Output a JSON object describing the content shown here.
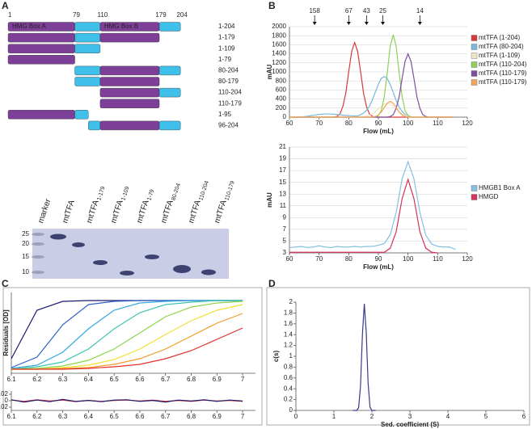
{
  "panels": [
    "A",
    "B",
    "C",
    "D"
  ],
  "constructs": {
    "domain_color": "#7e3f98",
    "linker_color": "#3fc0ea",
    "boundaries": [
      1,
      79,
      110,
      179,
      204
    ],
    "domains": [
      {
        "name": "HMG Box A",
        "start": 1,
        "end": 79
      },
      {
        "name": "HMG Box B",
        "start": 110,
        "end": 179
      }
    ],
    "rows": [
      {
        "label": "1-204",
        "start": 1,
        "end": 204
      },
      {
        "label": "1-179",
        "start": 1,
        "end": 179
      },
      {
        "label": "1-109",
        "start": 1,
        "end": 109
      },
      {
        "label": "1-79",
        "start": 1,
        "end": 79
      },
      {
        "label": "80-204",
        "start": 80,
        "end": 204
      },
      {
        "label": "80-179",
        "start": 80,
        "end": 179
      },
      {
        "label": "110-204",
        "start": 110,
        "end": 204
      },
      {
        "label": "110-179",
        "start": 110,
        "end": 179
      },
      {
        "label": "1-95",
        "start": 1,
        "end": 95
      },
      {
        "label": "96-204",
        "start": 96,
        "end": 204
      }
    ]
  },
  "gel": {
    "lanes": [
      {
        "name": "marker"
      },
      {
        "name": "mtTFA"
      },
      {
        "name": "mtTFA",
        "sub": "1-179"
      },
      {
        "name": "mtTFA",
        "sub": "1-109"
      },
      {
        "name": "mtTFA",
        "sub": "1-79"
      },
      {
        "name": "mtTFA",
        "sub": "80-204"
      },
      {
        "name": "mtTFA",
        "sub": "110-204"
      },
      {
        "name": "mtTFA",
        "sub": "110-179"
      }
    ],
    "markers": [
      25,
      20,
      15,
      10
    ]
  },
  "chart_data": [
    {
      "type": "line",
      "xlabel": "Flow (mL)",
      "ylabel": "mAU",
      "grid": true,
      "legend": "right",
      "xlim": [
        60,
        120
      ],
      "ylim": [
        0,
        2000
      ],
      "xticks": [
        60,
        70,
        80,
        90,
        100,
        110,
        120
      ],
      "yticks": [
        0,
        200,
        400,
        600,
        800,
        1000,
        1200,
        1400,
        1600,
        1800,
        2000
      ],
      "standards": {
        "x": [
          68.5,
          80,
          86,
          91.5,
          104
        ],
        "labels": [
          158,
          67,
          43,
          25,
          14
        ]
      },
      "x": [
        60,
        61,
        62,
        63,
        64,
        65,
        66,
        67,
        68,
        69,
        70,
        71,
        72,
        73,
        74,
        75,
        76,
        77,
        78,
        79,
        80,
        81,
        82,
        83,
        84,
        85,
        86,
        87,
        88,
        89,
        90,
        91,
        92,
        93,
        94,
        95,
        96,
        97,
        98,
        99,
        100,
        101,
        102,
        103,
        104,
        105,
        106,
        107,
        108,
        109,
        110,
        111,
        112,
        113,
        114,
        115
      ],
      "series": [
        {
          "name": "mtTFA (1-204)",
          "color": "#d9383a",
          "values": [
            0,
            0,
            0,
            0,
            0,
            0,
            0,
            0,
            0,
            0,
            0,
            0,
            0,
            0,
            0,
            0,
            16,
            66,
            231,
            528,
            1006,
            1452,
            1650,
            1452,
            1006,
            528,
            231,
            66,
            16,
            0,
            0,
            0,
            0,
            0,
            0,
            0,
            0,
            0,
            0,
            0,
            0,
            0,
            0,
            0,
            0,
            0,
            0,
            0,
            0,
            0,
            0,
            0,
            0,
            0,
            0,
            0
          ]
        },
        {
          "name": "mtTFA (80-204)",
          "color": "#79b8dc",
          "values": [
            0,
            0,
            0,
            0,
            5,
            10,
            20,
            30,
            40,
            50,
            60,
            65,
            70,
            70,
            70,
            65,
            60,
            55,
            45,
            40,
            35,
            30,
            28,
            28,
            55,
            90,
            150,
            245,
            385,
            560,
            725,
            858,
            900,
            855,
            720,
            549,
            369,
            225,
            126,
            63,
            27,
            10,
            0,
            0,
            0,
            0,
            0,
            0,
            0,
            0,
            0,
            0,
            0,
            0,
            0,
            0
          ]
        },
        {
          "name": "mtTFA (1-109)",
          "color": "#efe6c4",
          "values": [
            0,
            0,
            0,
            0,
            0,
            0,
            0,
            0,
            0,
            0,
            0,
            0,
            0,
            0,
            0,
            0,
            0,
            0,
            0,
            0,
            0,
            0,
            0,
            0,
            0,
            0,
            21,
            42,
            75,
            123,
            183,
            240,
            285,
            300,
            285,
            240,
            183,
            123,
            75,
            42,
            21,
            0,
            0,
            0,
            0,
            0,
            0,
            0,
            0,
            0,
            0,
            0,
            0,
            0,
            0,
            0
          ]
        },
        {
          "name": "mtTFA (110-204)",
          "color": "#8fcf5b",
          "values": [
            0,
            0,
            0,
            0,
            0,
            0,
            0,
            0,
            0,
            0,
            0,
            0,
            0,
            0,
            0,
            0,
            0,
            0,
            0,
            0,
            0,
            0,
            0,
            0,
            0,
            0,
            0,
            0,
            0,
            0,
            36,
            146,
            455,
            983,
            1565,
            1820,
            1565,
            983,
            455,
            146,
            36,
            0,
            0,
            0,
            0,
            0,
            0,
            0,
            0,
            0,
            0,
            0,
            0,
            0,
            0,
            0
          ]
        },
        {
          "name": "mtTFA (110-179)",
          "color": "#7b4fa0",
          "values": [
            0,
            0,
            0,
            0,
            0,
            0,
            0,
            0,
            0,
            0,
            0,
            0,
            0,
            0,
            0,
            0,
            0,
            0,
            0,
            0,
            0,
            0,
            0,
            0,
            0,
            0,
            0,
            0,
            0,
            0,
            0,
            0,
            0,
            0,
            14,
            56,
            196,
            448,
            854,
            1232,
            1400,
            1232,
            854,
            448,
            196,
            56,
            14,
            0,
            0,
            0,
            0,
            0,
            0,
            0,
            0,
            0
          ]
        },
        {
          "name": "mtTFA (110-179)",
          "color": "#f2a65a",
          "values": [
            0,
            0,
            0,
            0,
            0,
            0,
            0,
            0,
            0,
            0,
            0,
            0,
            0,
            0,
            0,
            0,
            0,
            0,
            0,
            0,
            0,
            0,
            0,
            0,
            0,
            0,
            0,
            0,
            4,
            14,
            49,
            112,
            214,
            308,
            350,
            308,
            214,
            112,
            49,
            14,
            4,
            0,
            0,
            0,
            0,
            0,
            0,
            0,
            0,
            0,
            0,
            0,
            0,
            0,
            0,
            0
          ]
        }
      ]
    },
    {
      "type": "line",
      "xlabel": "Flow (mL)",
      "ylabel": "mAU",
      "grid": true,
      "legend": "right",
      "xlim": [
        60,
        120
      ],
      "ylim": [
        3,
        21
      ],
      "xticks": [
        60,
        70,
        80,
        90,
        100,
        110,
        120
      ],
      "yticks": [
        3,
        5,
        7,
        9,
        11,
        13,
        15,
        17,
        19,
        21
      ],
      "x": [
        60,
        62,
        64,
        66,
        68,
        70,
        72,
        74,
        76,
        78,
        80,
        82,
        84,
        86,
        88,
        90,
        92,
        94,
        96,
        98,
        100,
        102,
        104,
        106,
        108,
        110,
        112,
        114,
        116
      ],
      "series": [
        {
          "name": "HMGB1 Box A",
          "color": "#86bfe0",
          "values": [
            3.9,
            4.0,
            4.1,
            3.9,
            4.0,
            4.2,
            4.0,
            3.9,
            4.1,
            4.0,
            4.0,
            4.1,
            4.0,
            4.1,
            4.1,
            4.3,
            4.6,
            6.1,
            9.9,
            15.6,
            18.5,
            15.6,
            9.9,
            6.0,
            4.5,
            4.1,
            4.0,
            4.0,
            3.6
          ]
        },
        {
          "name": "HMGD",
          "color": "#d6335a",
          "values": [
            3.1,
            3.1,
            3.1,
            3.1,
            3.1,
            3.1,
            3.1,
            3.1,
            3.1,
            3.1,
            3.1,
            3.1,
            3.1,
            3.1,
            3.1,
            3.1,
            3.1,
            3.8,
            6.6,
            12.2,
            15.5,
            12.2,
            6.6,
            3.8,
            3.1,
            3.0,
            null,
            null,
            null
          ]
        }
      ]
    },
    {
      "type": "line",
      "ylabel": "Residuals [OD]",
      "grid": false,
      "xlim": [
        6.1,
        7.05
      ],
      "ylim": [
        0,
        1
      ],
      "xticks": [
        6.1,
        6.2,
        6.3,
        6.4,
        6.5,
        6.6,
        6.7,
        6.8,
        6.9,
        7
      ],
      "x": [
        6.1,
        6.2,
        6.3,
        6.4,
        6.5,
        6.6,
        6.7,
        6.8,
        6.9,
        7.0
      ],
      "series": [
        {
          "color": "#1a1a6e",
          "values": [
            0.18,
            0.78,
            0.89,
            0.9,
            0.9,
            0.9,
            0.9,
            0.9,
            0.9,
            0.9
          ]
        },
        {
          "color": "#2f5fc4",
          "values": [
            0.07,
            0.2,
            0.6,
            0.85,
            0.89,
            0.9,
            0.9,
            0.9,
            0.9,
            0.9
          ]
        },
        {
          "color": "#35a8e0",
          "values": [
            0.06,
            0.1,
            0.26,
            0.55,
            0.78,
            0.87,
            0.89,
            0.9,
            0.9,
            0.9
          ]
        },
        {
          "color": "#3fc4b0",
          "values": [
            0.05,
            0.08,
            0.14,
            0.3,
            0.55,
            0.75,
            0.85,
            0.88,
            0.9,
            0.9
          ]
        },
        {
          "color": "#8cd44a",
          "values": [
            0.05,
            0.06,
            0.09,
            0.16,
            0.3,
            0.5,
            0.7,
            0.82,
            0.87,
            0.89
          ]
        },
        {
          "color": "#f0e030",
          "values": [
            0.05,
            0.05,
            0.07,
            0.1,
            0.17,
            0.3,
            0.48,
            0.65,
            0.78,
            0.85
          ]
        },
        {
          "color": "#f29a2e",
          "values": [
            0.05,
            0.05,
            0.06,
            0.07,
            0.11,
            0.18,
            0.3,
            0.46,
            0.62,
            0.74
          ]
        },
        {
          "color": "#e0302a",
          "values": [
            0.05,
            0.05,
            0.05,
            0.06,
            0.08,
            0.11,
            0.18,
            0.28,
            0.42,
            0.56
          ]
        }
      ]
    },
    {
      "type": "line",
      "ylabel": "Residuals [OD]",
      "grid": false,
      "xlim": [
        6.1,
        7.05
      ],
      "ylim": [
        -0.03,
        0.03
      ],
      "xticks": [
        6.1,
        6.2,
        6.3,
        6.4,
        6.5,
        6.6,
        6.7,
        6.8,
        6.9,
        7
      ],
      "yticks": [
        -0.02,
        0,
        0.02
      ],
      "x": [
        6.1,
        6.15,
        6.2,
        6.25,
        6.3,
        6.35,
        6.4,
        6.45,
        6.5,
        6.55,
        6.6,
        6.65,
        6.7,
        6.75,
        6.8,
        6.85,
        6.9,
        6.95,
        7.0
      ],
      "series": [
        {
          "color": "#e0302a",
          "values": [
            0.002,
            -0.002,
            0.003,
            -0.001,
            0.002,
            -0.003,
            0.001,
            -0.002,
            0.001,
            0.002,
            -0.001,
            0.002,
            -0.002,
            0.001,
            -0.002,
            0.002,
            -0.001,
            0.001,
            -0.002
          ]
        },
        {
          "color": "#1a1a6e",
          "values": [
            0.003,
            -0.004,
            0.002,
            -0.003,
            0.004,
            -0.002,
            0.001,
            -0.003,
            0.002,
            0.003,
            -0.002,
            0.001,
            -0.004,
            0.002,
            -0.001,
            0.003,
            -0.002,
            0.002,
            -0.001
          ]
        }
      ]
    },
    {
      "type": "line",
      "xlabel": "Sed. coefficient (S)",
      "ylabel": "c(s)",
      "grid": false,
      "xlim": [
        0,
        6
      ],
      "ylim": [
        0,
        2
      ],
      "xticks": [
        0,
        1,
        2,
        3,
        4,
        5,
        6
      ],
      "yticks": [
        0,
        0.2,
        0.4,
        0.6,
        0.8,
        1,
        1.2,
        1.4,
        1.6,
        1.8,
        2
      ],
      "x": [
        1.5,
        1.6,
        1.65,
        1.7,
        1.75,
        1.8,
        1.85,
        1.9,
        1.95,
        2.0,
        2.1
      ],
      "series": [
        {
          "color": "#3a3a8c",
          "values": [
            0,
            0,
            0.05,
            0.45,
            1.4,
            1.97,
            1.45,
            0.5,
            0.06,
            0,
            0
          ]
        }
      ]
    }
  ]
}
